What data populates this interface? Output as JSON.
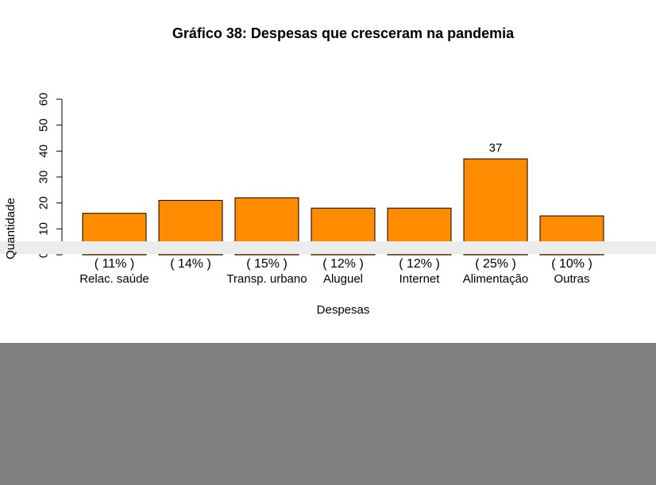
{
  "chart_data": {
    "type": "bar",
    "title": "Gráfico 38: Despesas que cresceram na pandemia",
    "xlabel": "Despesas",
    "ylabel": "Quantidade",
    "ylim": [
      0,
      60
    ],
    "yticks": [
      "0",
      "10",
      "20",
      "30",
      "40",
      "50",
      "60"
    ],
    "categories": [
      "Relac. saúde",
      "",
      "Transp. urbano",
      "Aluguel",
      "Internet",
      "Alimentação",
      "Outras"
    ],
    "percent_labels": [
      "( 11% )",
      "( 14% )",
      "( 15% )",
      "( 12% )",
      "( 12% )",
      "( 25% )",
      "( 10% )"
    ],
    "value_labels": [
      "",
      "",
      "",
      "",
      "",
      "37",
      ""
    ],
    "values": [
      16,
      21,
      22,
      18,
      18,
      37,
      15
    ],
    "bar_color": "#ff8c00",
    "bar_stroke": "#000000",
    "grid": false,
    "legend": "none"
  },
  "colors": {
    "background": "#ffffff",
    "footer": "#808080",
    "overlay_band": "#ececec"
  }
}
